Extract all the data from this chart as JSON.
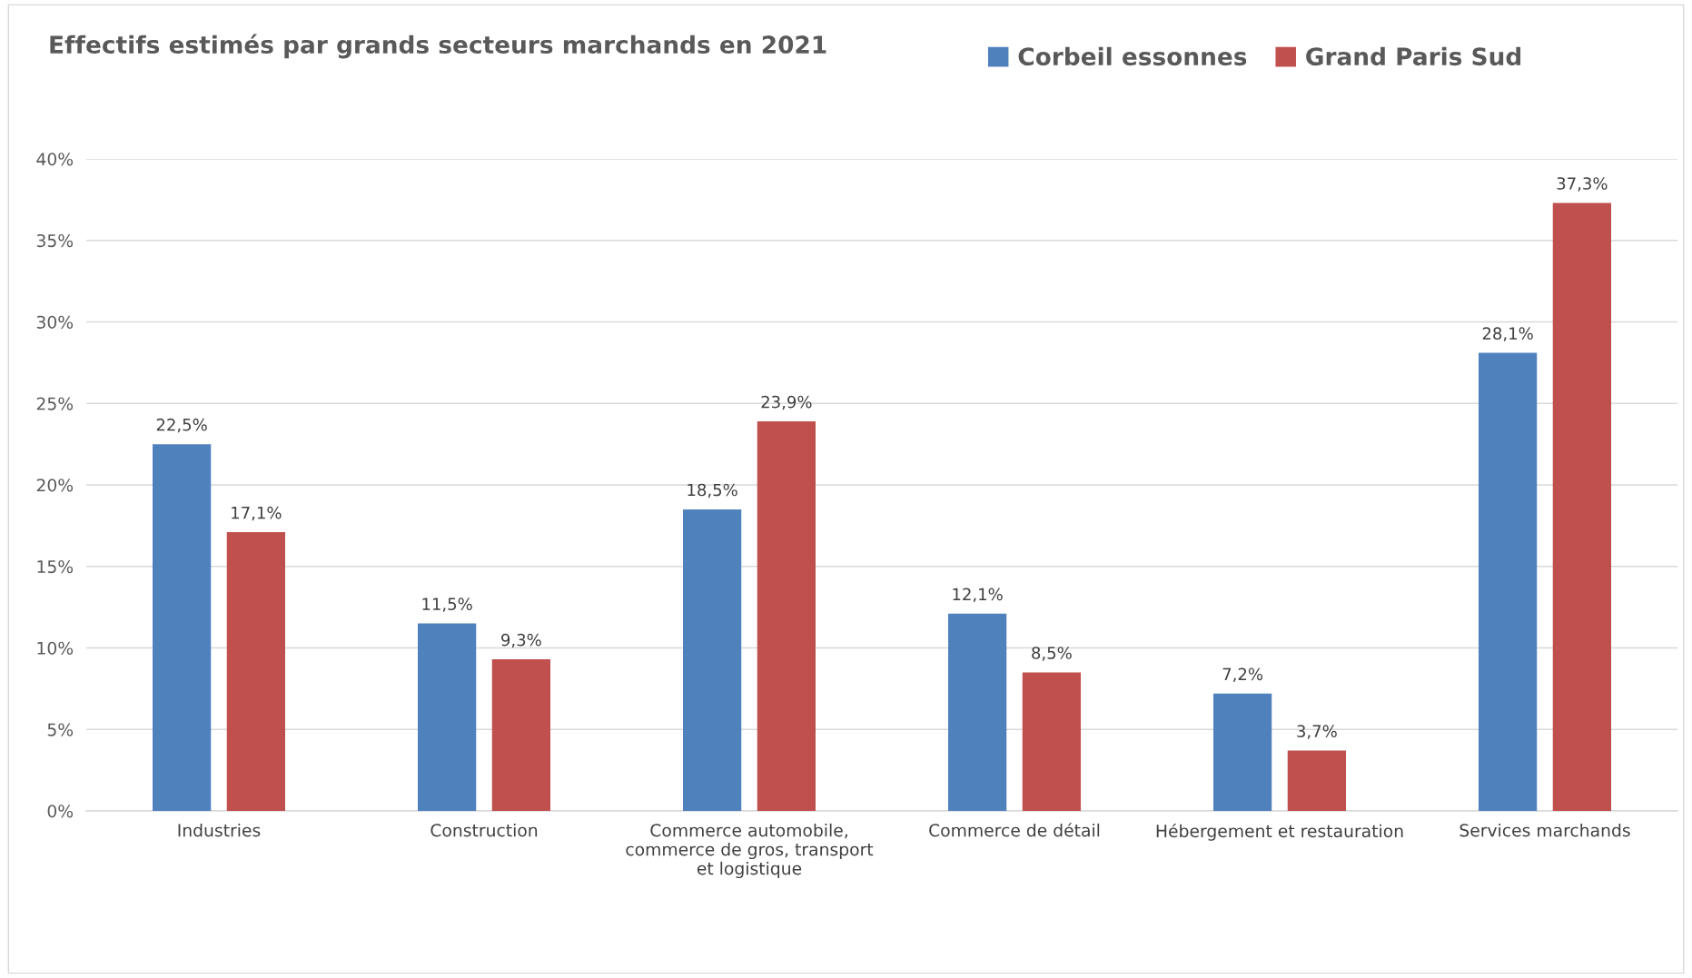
{
  "chart_data": {
    "type": "bar",
    "title": "Effectifs estimés par grands secteurs marchands en 2021",
    "categories": [
      "Industries",
      "Construction",
      "Commerce automobile,\ncommerce de gros, transport\net logistique",
      "Commerce de détail",
      "Hébergement et restauration",
      "Services marchands"
    ],
    "series": [
      {
        "name": "Corbeil essonnes",
        "color": "#4f81bd",
        "values": [
          22.5,
          11.5,
          18.5,
          12.1,
          7.2,
          28.1
        ],
        "value_labels": [
          "22,5%",
          "11,5%",
          "18,5%",
          "12,1%",
          "7,2%",
          "28,1%"
        ]
      },
      {
        "name": "Grand Paris Sud",
        "color": "#c0504d",
        "values": [
          17.1,
          9.3,
          23.9,
          8.5,
          3.7,
          37.3
        ],
        "value_labels": [
          "17,1%",
          "9,3%",
          "23,9%",
          "8,5%",
          "3,7%",
          "37,3%"
        ]
      }
    ],
    "ylim": [
      0,
      40
    ],
    "yticks": [
      {
        "value": 0,
        "label": "0%"
      },
      {
        "value": 5,
        "label": "5%"
      },
      {
        "value": 10,
        "label": "10%"
      },
      {
        "value": 15,
        "label": "15%"
      },
      {
        "value": 20,
        "label": "20%"
      },
      {
        "value": 25,
        "label": "25%"
      },
      {
        "value": 30,
        "label": "30%"
      },
      {
        "value": 35,
        "label": "35%"
      },
      {
        "value": 40,
        "label": "40%"
      }
    ],
    "grid": "y",
    "legend": "top right"
  }
}
